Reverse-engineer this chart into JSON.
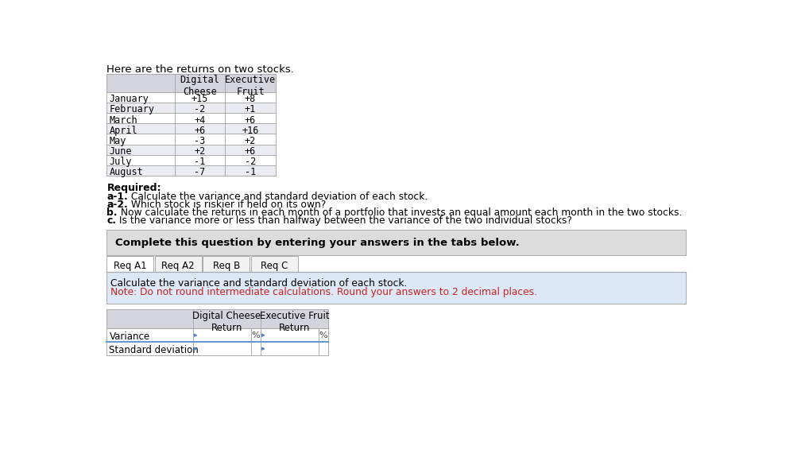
{
  "title": "Here are the returns on two stocks.",
  "months": [
    "January",
    "February",
    "March",
    "April",
    "May",
    "June",
    "July",
    "August"
  ],
  "digital_cheese": [
    "+15",
    "-2",
    "+4",
    "+6",
    "-3",
    "+2",
    "-1",
    "-7"
  ],
  "executive_fruit": [
    "+8",
    "+1",
    "+6",
    "+16",
    "+2",
    "+6",
    "-2",
    "-1"
  ],
  "required_text": "Required:",
  "req_lines": [
    {
      "bold": "a-1.",
      "normal": " Calculate the variance and standard deviation of each stock."
    },
    {
      "bold": "a-2.",
      "normal": " Which stock is riskier if held on its own?"
    },
    {
      "bold": "b.",
      "normal": " Now calculate the returns in each month of a portfolio that invests an equal amount each month in the two stocks."
    },
    {
      "bold": "c.",
      "normal": " Is the variance more or less than halfway between the variance of the two individual stocks?"
    }
  ],
  "complete_box_text": "Complete this question by entering your answers in the tabs below.",
  "tabs": [
    "Req A1",
    "Req A2",
    "Req B",
    "Req C"
  ],
  "calc_text_line1": "Calculate the variance and standard deviation of each stock.",
  "calc_text_line2": "Note: Do not round intermediate calculations. Round your answers to 2 decimal places.",
  "bg_color": "#ffffff",
  "table_header_bg": "#d4d4dc",
  "table_row_even": "#ffffff",
  "table_row_odd": "#ebebf2",
  "complete_box_bg": "#dcdcdc",
  "tab_content_bg": "#dce8f5",
  "border_color": "#aaaaaa",
  "red_color": "#cc2222",
  "blue_tri_color": "#5588cc"
}
